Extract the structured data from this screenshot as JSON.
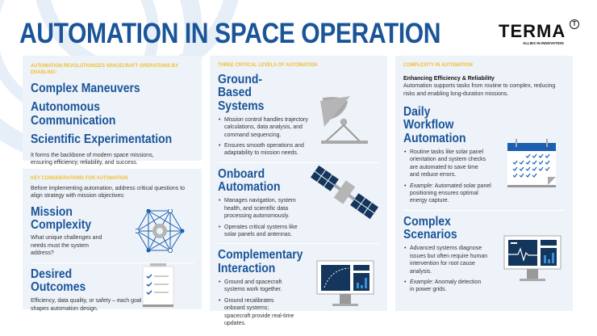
{
  "title": "AUTOMATION IN SPACE OPERATION",
  "logo": {
    "name": "TERMA",
    "mark": "T",
    "tagline": "ALLIES IN INNOVATION"
  },
  "colors": {
    "primary": "#1a5499",
    "accent": "#f0be2b",
    "panel": "#eef3f9",
    "navy": "#14365c",
    "gray": "#a9a9a9"
  },
  "left": {
    "intro": {
      "label": "Automation revolutionizes spacecraft operations by enabling:",
      "items": [
        "Complex Maneuvers",
        "Autonomous Communication",
        "Scientific Experimentation"
      ],
      "text": "It forms the backbone of modern space missions, ensuring efficiency, reliability, and success."
    },
    "considerations": {
      "label": "Key considerations for automation",
      "text": "Before implementing automation, address critical questions to align strategy with mission objectives:",
      "sections": [
        {
          "title": "Mission Complexity",
          "text": "What unique challenges and needs must the system address?",
          "icon": "network-gear-icon"
        },
        {
          "title": "Desired Outcomes",
          "text": "Efficiency, data quality, or safety – each goal shapes automation design.",
          "icon": "clipboard-checklist-icon"
        }
      ]
    }
  },
  "middle": {
    "label": "Three critical levels of automation",
    "sections": [
      {
        "title": "Ground-Based Systems",
        "bullets": [
          "Mission control handles trajectory calculations, data analysis, and command sequencing.",
          "Ensures smooth operations and adaptability to mission needs."
        ],
        "icon": "satellite-dish-icon"
      },
      {
        "title": "Onboard Automation",
        "bullets": [
          "Manages navigation, system health, and scientific data processing autonomously.",
          "Operates critical systems like solar panels and antennas."
        ],
        "icon": "satellite-icon"
      },
      {
        "title": "Complementary Interaction",
        "bullets": [
          "Ground and spacecraft systems work together.",
          "Ground recalibrates onboard systems; spacecraft provide real-time updates."
        ],
        "icon": "monitor-dashboard-icon"
      }
    ]
  },
  "right": {
    "label": "Complexity in automation",
    "subtitle": "Enhancing Efficiency & Reliability",
    "text": "Automation supports tasks from routine to complex, reducing risks and enabling long-duration missions.",
    "sections": [
      {
        "title": "Daily Workflow Automation",
        "bullets": [
          "Routine tasks like solar panel orientation and system checks are automated to save time and reduce errors."
        ],
        "example_label": "Example:",
        "example": " Automated solar panel positioning ensures optimal energy capture.",
        "icon": "calendar-checks-icon"
      },
      {
        "title": "Complex Scenarios",
        "bullets": [
          "Advanced systems diagnose issues but often require human intervention for root cause analysis."
        ],
        "example_label": "Example:",
        "example": " Anomaly detection in power grids.",
        "icon": "monitor-waveform-icon"
      }
    ]
  }
}
